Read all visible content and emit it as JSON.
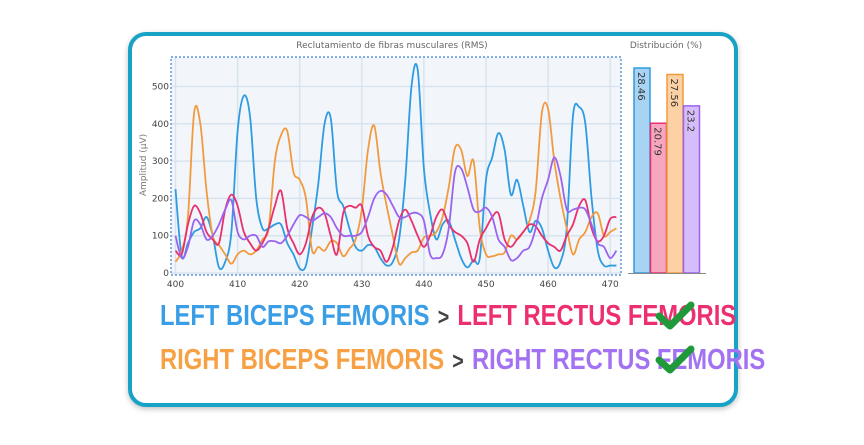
{
  "chart_data": [
    {
      "type": "line",
      "title": "Reclutamiento de fibras musculares (RMS)",
      "ylabel": "Amplitud (µV)",
      "xlabel": "",
      "xlim": [
        400,
        471
      ],
      "ylim": [
        0,
        580
      ],
      "xticks": [
        400,
        410,
        420,
        430,
        440,
        450,
        460,
        470
      ],
      "yticks": [
        0,
        100,
        200,
        300,
        400,
        500
      ],
      "grid": true,
      "x": [
        400,
        401,
        402,
        403,
        404,
        405,
        406,
        407,
        408,
        409,
        410,
        411,
        412,
        413,
        414,
        415,
        416,
        417,
        418,
        419,
        420,
        421,
        422,
        423,
        424,
        425,
        426,
        427,
        428,
        429,
        430,
        431,
        432,
        433,
        434,
        435,
        436,
        437,
        438,
        439,
        440,
        441,
        442,
        443,
        444,
        445,
        446,
        447,
        448,
        449,
        450,
        451,
        452,
        453,
        454,
        455,
        456,
        457,
        458,
        459,
        460,
        461,
        462,
        463,
        464,
        465,
        466,
        467,
        468,
        469,
        470,
        471
      ],
      "series": [
        {
          "color": "#2f9be0",
          "values": [
            225,
            45,
            80,
            110,
            120,
            150,
            100,
            15,
            30,
            110,
            380,
            475,
            420,
            200,
            120,
            120,
            130,
            130,
            80,
            50,
            12,
            20,
            120,
            240,
            400,
            415,
            220,
            180,
            120,
            70,
            60,
            75,
            70,
            40,
            20,
            30,
            90,
            250,
            500,
            545,
            280,
            160,
            90,
            130,
            140,
            90,
            40,
            15,
            35,
            40,
            250,
            310,
            375,
            330,
            210,
            250,
            180,
            110,
            140,
            120,
            60,
            15,
            30,
            120,
            420,
            445,
            400,
            200,
            60,
            20,
            20,
            20
          ]
        },
        {
          "color": "#f29a3e",
          "values": [
            30,
            60,
            150,
            430,
            400,
            220,
            100,
            75,
            50,
            25,
            50,
            60,
            50,
            60,
            90,
            120,
            300,
            370,
            380,
            270,
            250,
            200,
            60,
            70,
            60,
            85,
            80,
            45,
            65,
            90,
            170,
            330,
            395,
            270,
            180,
            100,
            25,
            40,
            55,
            60,
            95,
            100,
            110,
            150,
            230,
            335,
            330,
            260,
            300,
            120,
            50,
            45,
            50,
            55,
            100,
            90,
            110,
            140,
            220,
            430,
            440,
            300,
            200,
            120,
            50,
            90,
            110,
            150,
            160,
            100,
            110,
            120
          ]
        },
        {
          "color": "#e8306c",
          "values": [
            60,
            50,
            130,
            180,
            160,
            110,
            90,
            80,
            170,
            210,
            180,
            110,
            80,
            60,
            80,
            120,
            180,
            220,
            120,
            80,
            50,
            80,
            150,
            175,
            160,
            100,
            50,
            160,
            180,
            175,
            180,
            100,
            70,
            60,
            30,
            70,
            140,
            170,
            140,
            100,
            70,
            100,
            150,
            170,
            130,
            110,
            100,
            80,
            30,
            90,
            120,
            150,
            160,
            90,
            70,
            90,
            110,
            130,
            125,
            100,
            80,
            70,
            60,
            100,
            130,
            180,
            195,
            120,
            85,
            100,
            145,
            150
          ]
        },
        {
          "color": "#9b63ee",
          "values": [
            100,
            40,
            70,
            140,
            130,
            90,
            100,
            130,
            170,
            195,
            110,
            90,
            100,
            100,
            70,
            85,
            85,
            80,
            100,
            130,
            155,
            150,
            140,
            150,
            160,
            150,
            120,
            100,
            100,
            100,
            110,
            150,
            200,
            220,
            210,
            180,
            150,
            150,
            160,
            160,
            140,
            50,
            40,
            50,
            120,
            270,
            280,
            230,
            170,
            165,
            175,
            150,
            90,
            70,
            35,
            40,
            60,
            70,
            120,
            200,
            250,
            310,
            260,
            170,
            170,
            175,
            170,
            130,
            80,
            70,
            40,
            60
          ]
        }
      ]
    },
    {
      "type": "bar",
      "title": "Distribución (%)",
      "ylim": [
        0,
        30
      ],
      "values": [
        28.46,
        20.79,
        27.56,
        23.2
      ],
      "labels": [
        "28.46",
        "20.79",
        "27.56",
        "23.2"
      ],
      "colors": [
        "#2f9be0",
        "#e8306c",
        "#f29a3e",
        "#9b63ee"
      ]
    }
  ],
  "legend": {
    "row1": {
      "a": "LEFT BICEPS FEMORIS",
      "op": ">",
      "b": "LEFT RECTUS FEMORIS"
    },
    "row2": {
      "a": "RIGHT BICEPS FEMORIS",
      "op": ">",
      "b": "RIGHT RECTUS FEMORIS"
    },
    "colors": {
      "left_biceps": "#3a9ee6",
      "left_rectus": "#ee2f6f",
      "right_biceps": "#f7a044",
      "right_rectus": "#a272f2",
      "check": "#1f9a3b"
    }
  }
}
